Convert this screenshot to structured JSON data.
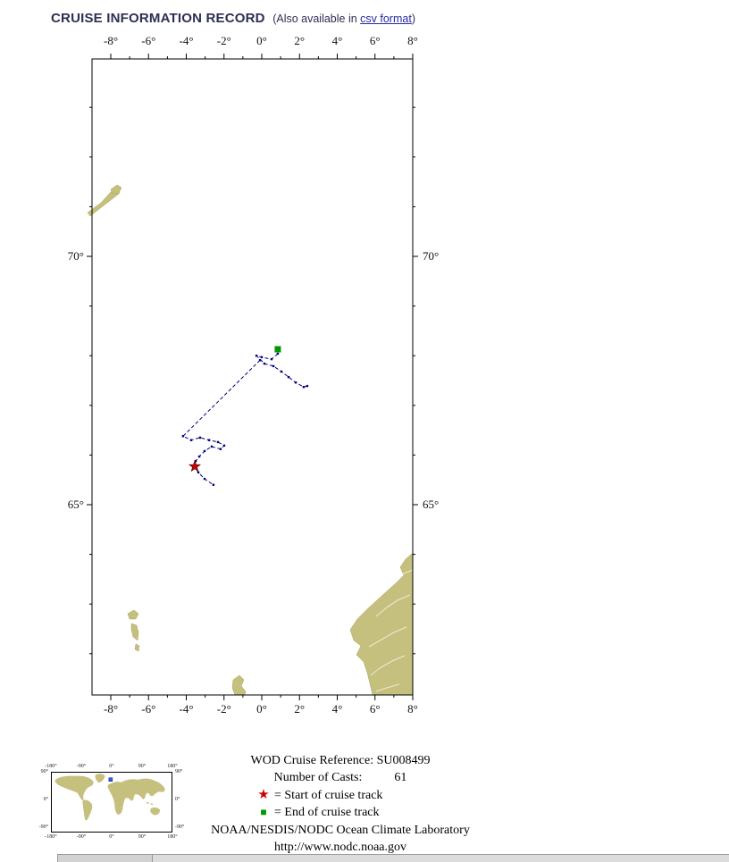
{
  "page": {
    "title": "CRUISE INFORMATION RECORD",
    "subtitle_prefix": "(Also available in ",
    "csv_link": "csv format",
    "subtitle_suffix": ")"
  },
  "colors": {
    "land": "#c6c07f",
    "land_edge": "#a9a35b",
    "track": "#000080",
    "start": "#cc0000",
    "end": "#009800",
    "inset_marker": "#3a5fcd"
  },
  "map": {
    "x_ticks": [
      {
        "lon": -8,
        "label": "-8°"
      },
      {
        "lon": -6,
        "label": "-6°"
      },
      {
        "lon": -4,
        "label": "-4°"
      },
      {
        "lon": -2,
        "label": "-2°"
      },
      {
        "lon": 0,
        "label": "0°"
      },
      {
        "lon": 2,
        "label": "2°"
      },
      {
        "lon": 4,
        "label": "4°"
      },
      {
        "lon": 6,
        "label": "6°"
      },
      {
        "lon": 8,
        "label": "8°"
      }
    ],
    "y_ticks": [
      {
        "lat": 70,
        "label": "70°"
      },
      {
        "lat": 65,
        "label": "65°"
      }
    ],
    "track": {
      "segments": [
        [
          [
            0.85,
            68.04
          ],
          [
            0.52,
            67.93
          ],
          [
            0.0,
            67.97
          ],
          [
            -0.28,
            68.0
          ],
          [
            0.14,
            67.84
          ],
          [
            0.62,
            67.79
          ],
          [
            1.04,
            67.68
          ],
          [
            1.42,
            67.57
          ],
          [
            1.8,
            67.46
          ],
          [
            2.22,
            67.37
          ],
          [
            2.41,
            67.39
          ]
        ],
        [
          [
            -0.09,
            67.91
          ],
          [
            -4.17,
            66.38
          ],
          [
            -3.74,
            66.3
          ],
          [
            -3.27,
            66.35
          ],
          [
            -2.79,
            66.3
          ],
          [
            -2.32,
            66.26
          ],
          [
            -1.99,
            66.19
          ],
          [
            -2.18,
            66.12
          ],
          [
            -2.65,
            66.17
          ],
          [
            -3.03,
            66.08
          ],
          [
            -3.31,
            65.97
          ],
          [
            -3.5,
            65.88
          ],
          [
            -3.55,
            65.77
          ],
          [
            -3.36,
            65.65
          ],
          [
            -3.03,
            65.52
          ],
          [
            -2.56,
            65.4
          ]
        ]
      ],
      "start": [
        -3.55,
        65.77
      ],
      "end": [
        0.85,
        68.13
      ]
    }
  },
  "legend": {
    "cruise_ref_label": "WOD Cruise Reference:",
    "cruise_ref_value": "SU008499",
    "casts_label": "Number of Casts:",
    "casts_value": "61",
    "start_label": "= Start of cruise track",
    "end_label": "= End of cruise track",
    "org": "NOAA/NESDIS/NODC Ocean Climate Laboratory",
    "url": "http://www.nodc.noaa.gov"
  },
  "inset": {
    "x_labels": [
      "-180°",
      "-90°",
      "0°",
      "90°",
      "180°"
    ],
    "y_labels": [
      "90°",
      "0°",
      "-90°"
    ],
    "marker_lon": -3,
    "marker_lat": 67
  }
}
